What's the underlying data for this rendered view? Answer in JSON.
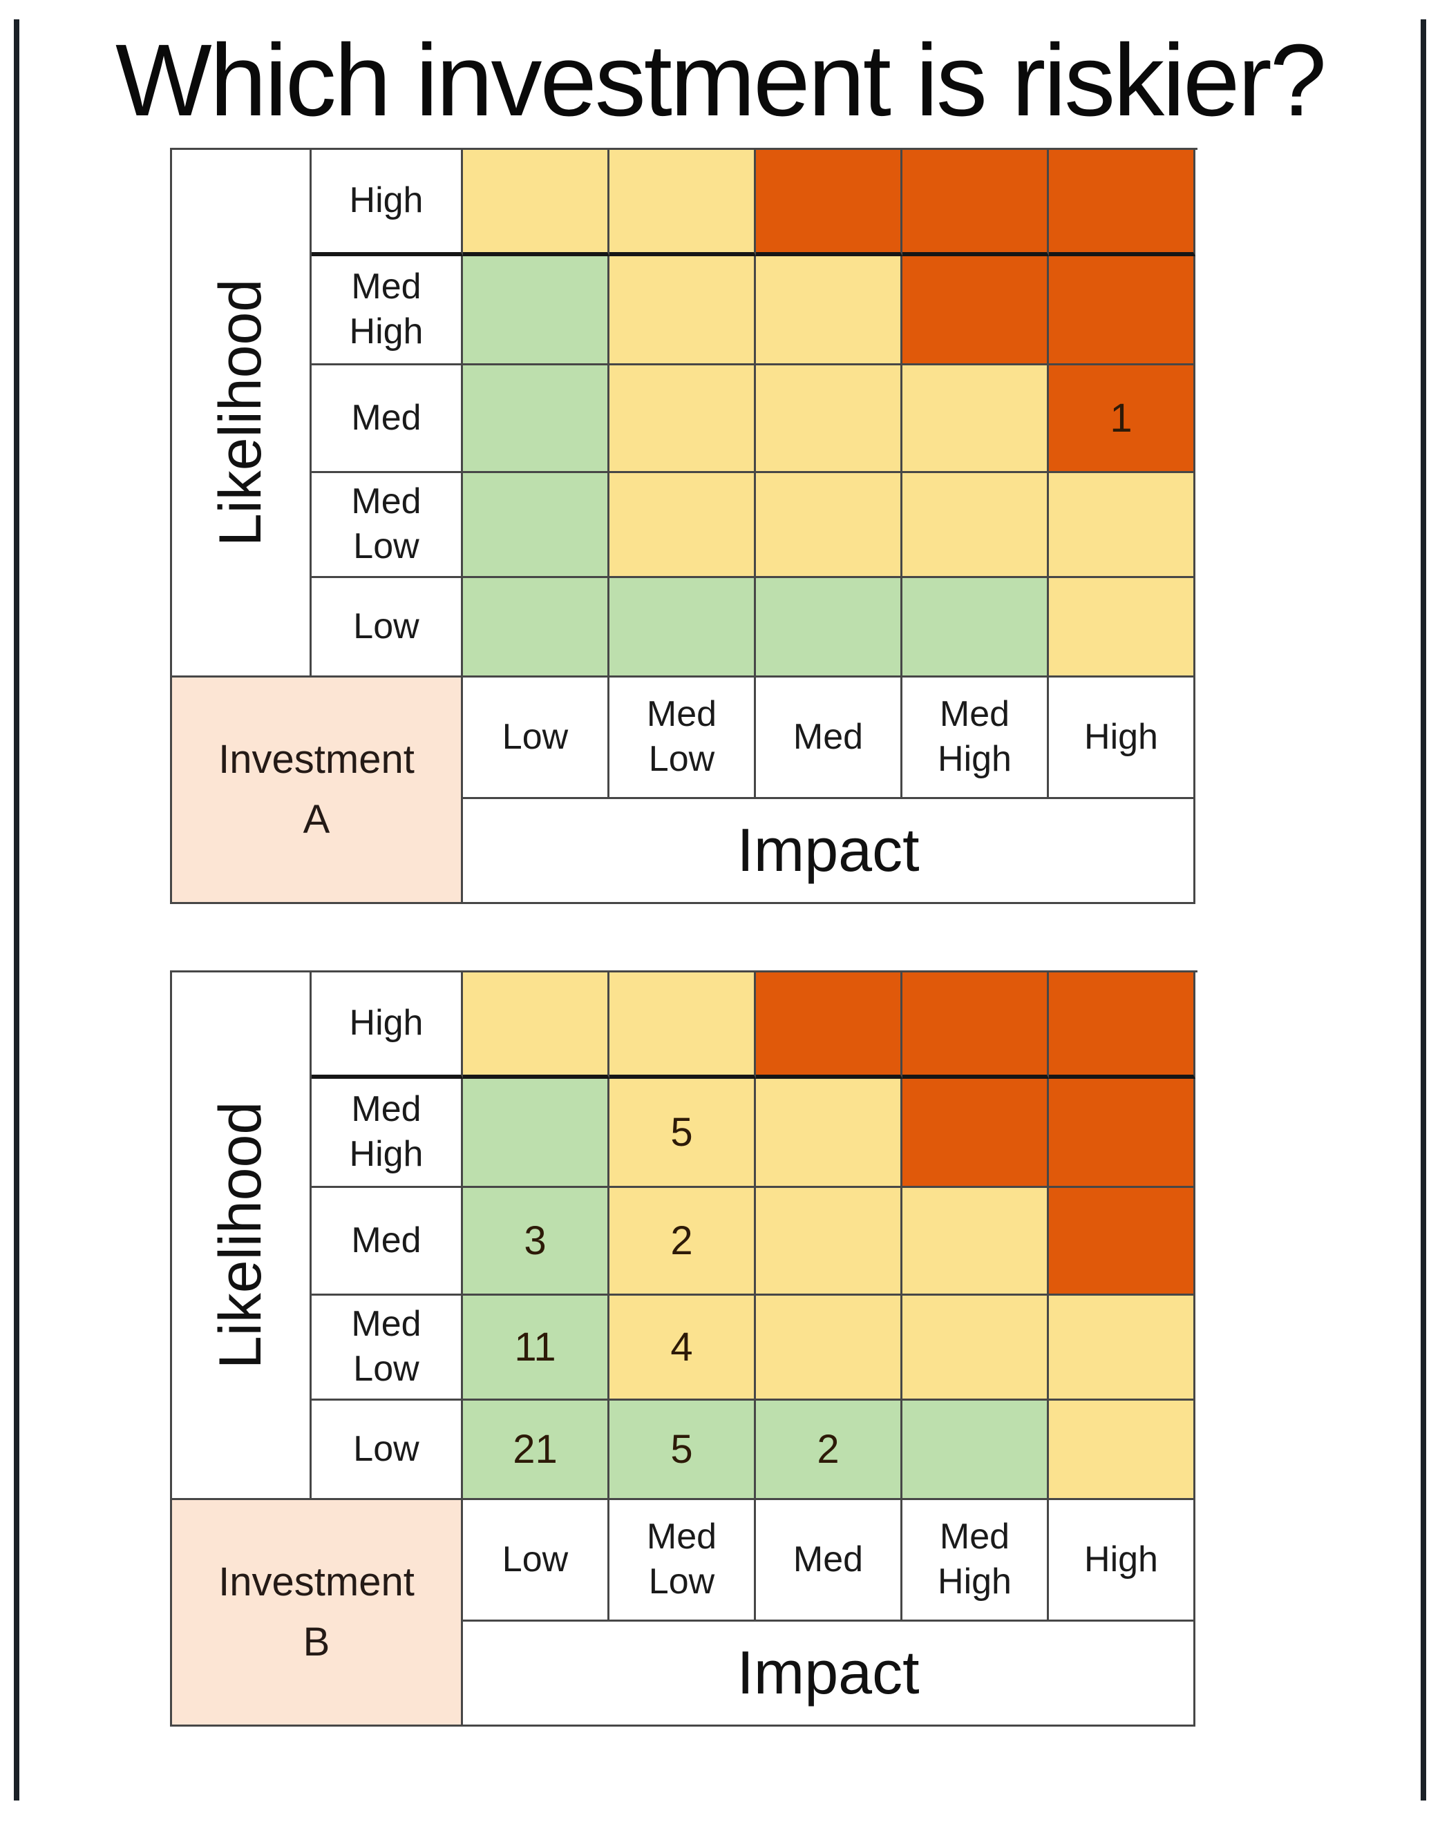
{
  "title": "Which investment is riskier?",
  "colors": {
    "frame": "#1b2127",
    "yellow": "#fbe28f",
    "green": "#bddfad",
    "orange": "#e0590a",
    "peach": "#fce5d4"
  },
  "axis": {
    "likelihood_label": "Likelihood",
    "impact_label": "Impact",
    "row_labels": [
      "High",
      "Med High",
      "Med",
      "Med Low",
      "Low"
    ],
    "col_labels": [
      "Low",
      "Med Low",
      "Med",
      "Med High",
      "High"
    ]
  },
  "chart_data": [
    {
      "type": "heatmap",
      "name": "Investment A",
      "name_line1": "Investment",
      "name_line2": "A",
      "rows": [
        "High",
        "Med High",
        "Med",
        "Med Low",
        "Low"
      ],
      "cols": [
        "Low",
        "Med Low",
        "Med",
        "Med High",
        "High"
      ],
      "cell_colors": [
        [
          "Y",
          "Y",
          "O",
          "O",
          "O"
        ],
        [
          "G",
          "Y",
          "Y",
          "O",
          "O"
        ],
        [
          "G",
          "Y",
          "Y",
          "Y",
          "O"
        ],
        [
          "G",
          "Y",
          "Y",
          "Y",
          "Y"
        ],
        [
          "G",
          "G",
          "G",
          "G",
          "Y"
        ]
      ],
      "values": [
        [
          "",
          "",
          "",
          "",
          ""
        ],
        [
          "",
          "",
          "",
          "",
          ""
        ],
        [
          "",
          "",
          "",
          "",
          "1"
        ],
        [
          "",
          "",
          "",
          "",
          ""
        ],
        [
          "",
          "",
          "",
          "",
          ""
        ]
      ]
    },
    {
      "type": "heatmap",
      "name": "Investment B",
      "name_line1": "Investment",
      "name_line2": "B",
      "rows": [
        "High",
        "Med High",
        "Med",
        "Med Low",
        "Low"
      ],
      "cols": [
        "Low",
        "Med Low",
        "Med",
        "Med High",
        "High"
      ],
      "cell_colors": [
        [
          "Y",
          "Y",
          "O",
          "O",
          "O"
        ],
        [
          "G",
          "Y",
          "Y",
          "O",
          "O"
        ],
        [
          "G",
          "Y",
          "Y",
          "Y",
          "O"
        ],
        [
          "G",
          "Y",
          "Y",
          "Y",
          "Y"
        ],
        [
          "G",
          "G",
          "G",
          "G",
          "Y"
        ]
      ],
      "values": [
        [
          "",
          "",
          "",
          "",
          ""
        ],
        [
          "",
          "5",
          "",
          "",
          ""
        ],
        [
          "3",
          "2",
          "",
          "",
          ""
        ],
        [
          "11",
          "4",
          "",
          "",
          ""
        ],
        [
          "21",
          "5",
          "2",
          "",
          ""
        ]
      ]
    }
  ]
}
